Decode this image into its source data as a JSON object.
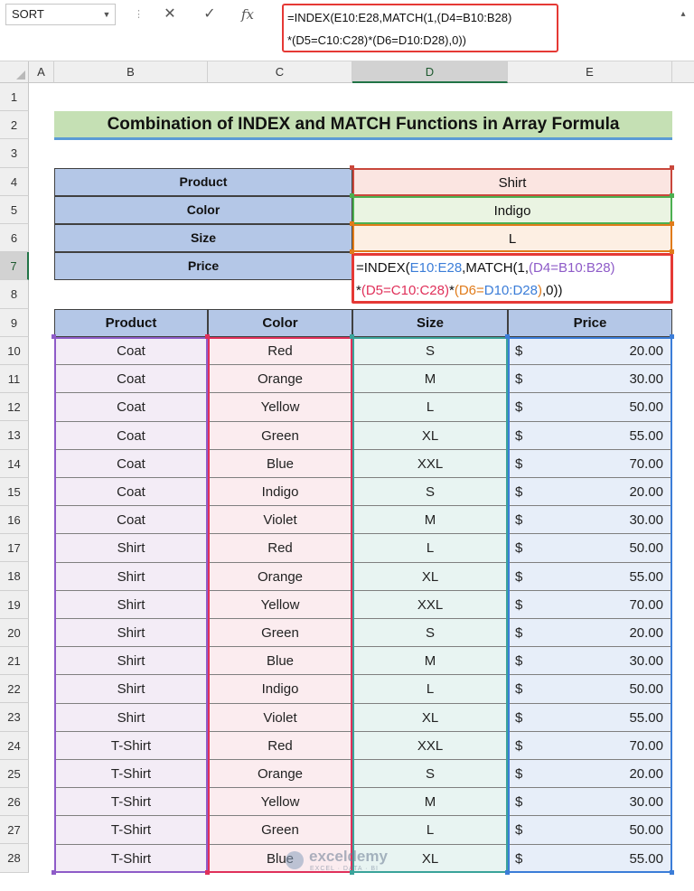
{
  "formula_bar": {
    "name_box": "SORT",
    "separator": "⋮",
    "cancel_icon": "✕",
    "enter_icon": "✓",
    "fx_label": "fx",
    "formula_line1": "=INDEX(E10:E28,MATCH(1,(D4=B10:B28)",
    "formula_line2": "*(D5=C10:C28)*(D6=D10:D28),0))"
  },
  "columns": [
    "A",
    "B",
    "C",
    "D",
    "E"
  ],
  "rows": [
    "1",
    "2",
    "3",
    "4",
    "5",
    "6",
    "7",
    "8",
    "9",
    "10",
    "11",
    "12",
    "13",
    "14",
    "15",
    "16",
    "17",
    "18",
    "19",
    "20",
    "21",
    "22",
    "23",
    "24",
    "25",
    "26",
    "27",
    "28"
  ],
  "title": "Combination of INDEX and MATCH Functions in Array Formula",
  "criteria": [
    {
      "label": "Product",
      "value": "Shirt"
    },
    {
      "label": "Color",
      "value": "Indigo"
    },
    {
      "label": "Size",
      "value": "L"
    },
    {
      "label": "Price"
    }
  ],
  "price_formula": {
    "p1": "=INDEX(",
    "p2": "E10:E28",
    "p3": ",MATCH(1,",
    "p4": "(D4=",
    "p5": "B10:B28",
    "p6": ")",
    "p7": "*",
    "p8": "(D5=",
    "p9": "C10:C28",
    "p10": ")",
    "p11": "*",
    "p12": "(D6=",
    "p13": "D10:D28",
    "p14": ")",
    "p15": ",0))"
  },
  "table": {
    "headers": [
      "Product",
      "Color",
      "Size",
      "Price"
    ],
    "rows": [
      [
        "Coat",
        "Red",
        "S",
        "$",
        "20.00"
      ],
      [
        "Coat",
        "Orange",
        "M",
        "$",
        "30.00"
      ],
      [
        "Coat",
        "Yellow",
        "L",
        "$",
        "50.00"
      ],
      [
        "Coat",
        "Green",
        "XL",
        "$",
        "55.00"
      ],
      [
        "Coat",
        "Blue",
        "XXL",
        "$",
        "70.00"
      ],
      [
        "Coat",
        "Indigo",
        "S",
        "$",
        "20.00"
      ],
      [
        "Coat",
        "Violet",
        "M",
        "$",
        "30.00"
      ],
      [
        "Shirt",
        "Red",
        "L",
        "$",
        "50.00"
      ],
      [
        "Shirt",
        "Orange",
        "XL",
        "$",
        "55.00"
      ],
      [
        "Shirt",
        "Yellow",
        "XXL",
        "$",
        "70.00"
      ],
      [
        "Shirt",
        "Green",
        "S",
        "$",
        "20.00"
      ],
      [
        "Shirt",
        "Blue",
        "M",
        "$",
        "30.00"
      ],
      [
        "Shirt",
        "Indigo",
        "L",
        "$",
        "50.00"
      ],
      [
        "Shirt",
        "Violet",
        "XL",
        "$",
        "55.00"
      ],
      [
        "T-Shirt",
        "Red",
        "XXL",
        "$",
        "70.00"
      ],
      [
        "T-Shirt",
        "Orange",
        "S",
        "$",
        "20.00"
      ],
      [
        "T-Shirt",
        "Yellow",
        "M",
        "$",
        "30.00"
      ],
      [
        "T-Shirt",
        "Green",
        "L",
        "$",
        "50.00"
      ],
      [
        "T-Shirt",
        "Blue",
        "XL",
        "$",
        "55.00"
      ]
    ]
  },
  "watermark": {
    "name": "exceldemy",
    "sub": "EXCEL · DATA · BI"
  },
  "colors": {
    "accent_green": "#217346",
    "header_fill": "#b4c7e7",
    "title_fill": "#c5e0b4",
    "range_product": "#8e5bc8",
    "range_color": "#e0305a",
    "range_size": "#3aa39a",
    "range_price": "#3b7dd8",
    "formula_highlight": "#e53935"
  }
}
